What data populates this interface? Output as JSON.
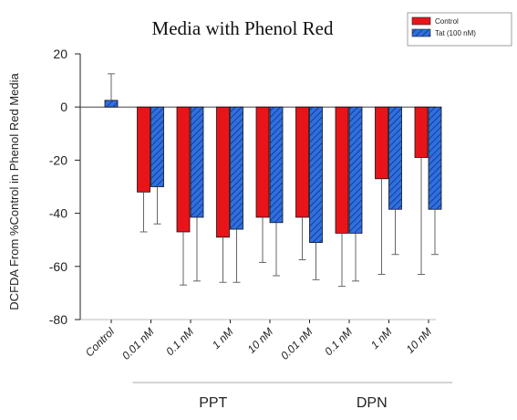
{
  "chart_data": {
    "type": "bar",
    "title": "Media with Phenol Red",
    "xlabel": "",
    "ylabel": "DCFDA From %Control in Phenol Red Media",
    "ylim": [
      -80,
      20
    ],
    "yticks": [
      20,
      0,
      -20,
      -40,
      -60,
      -80
    ],
    "grid": false,
    "legend_position": "top-right",
    "categories": [
      "Control",
      "0.01 nM",
      "0.1 nM",
      "1 nM",
      "10 nM",
      "0.01 nM",
      "0.1 nM",
      "1 nM",
      "10 nM"
    ],
    "groups": [
      {
        "label": "PPT",
        "categories": [
          1,
          2,
          3,
          4
        ]
      },
      {
        "label": "DPN",
        "categories": [
          5,
          6,
          7,
          8
        ]
      }
    ],
    "series": [
      {
        "name": "Control",
        "color": "#e8141a",
        "pattern": "solid",
        "values": [
          null,
          -32,
          -47,
          -49,
          -41.5,
          -41.5,
          -47.5,
          -27,
          -19
        ],
        "error": [
          null,
          15,
          20,
          17,
          17,
          16,
          20,
          36,
          44
        ]
      },
      {
        "name": "Tat (100 nM)",
        "color": "#2f6fe0",
        "pattern": "hatched",
        "values": [
          2.5,
          -30,
          -41.5,
          -46,
          -43.5,
          -51,
          -47.5,
          -38.5,
          -38.5
        ],
        "error": [
          10,
          14,
          24,
          20,
          20,
          14,
          18,
          17,
          17
        ]
      }
    ]
  }
}
